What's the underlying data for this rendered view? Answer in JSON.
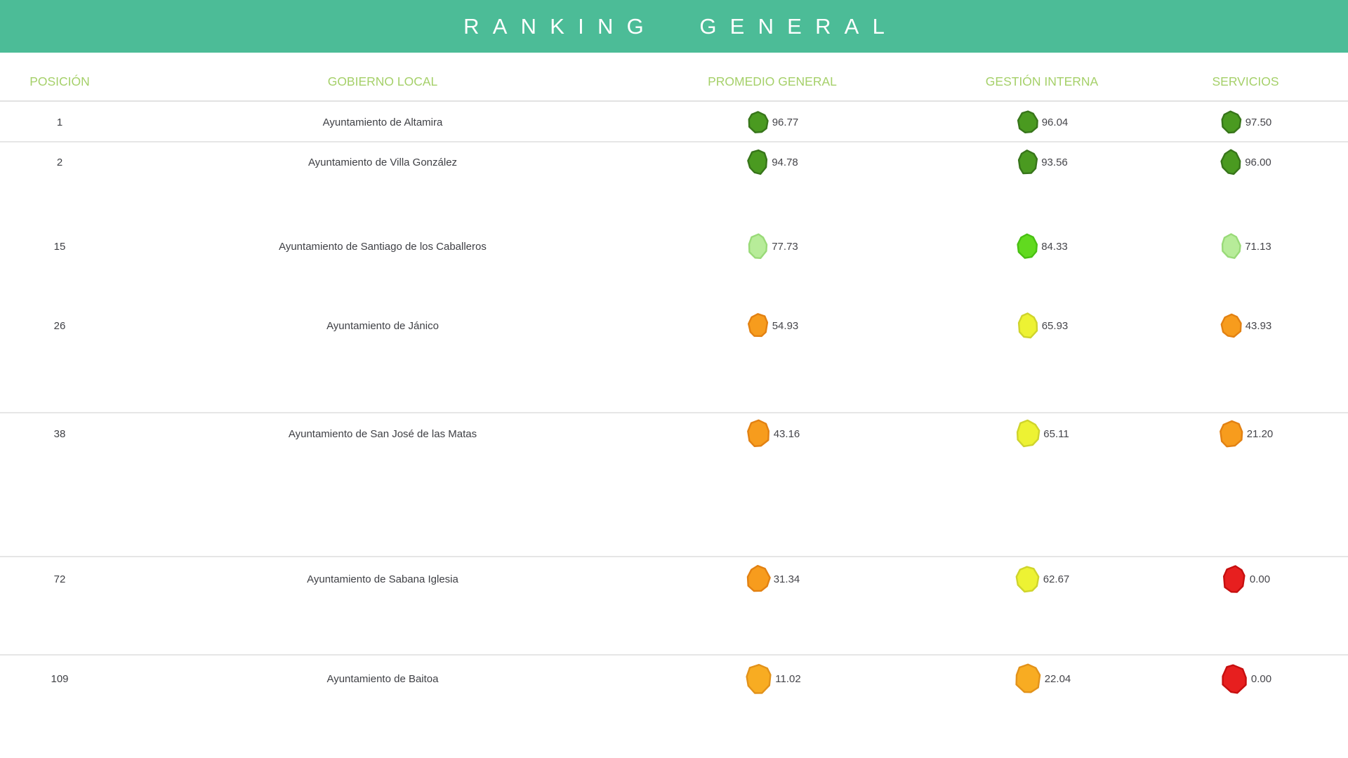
{
  "title": "RANKING GENERAL",
  "columns": [
    {
      "key": "posicion",
      "label": "POSICIÓN"
    },
    {
      "key": "gobierno",
      "label": "GOBIERNO LOCAL"
    },
    {
      "key": "promedio",
      "label": "PROMEDIO GENERAL"
    },
    {
      "key": "gestion",
      "label": "GESTIÓN INTERNA"
    },
    {
      "key": "servicios",
      "label": "SERVICIOS"
    }
  ],
  "colors": {
    "banner_background": "#4cbc97",
    "banner_title_text": "#ffffff",
    "column_header_text": "#a5d069",
    "row_text": "#3f4045",
    "score_text": "#45454a",
    "divider_line": "#e4e4e4"
  },
  "badge_palette": {
    "dark_green": {
      "fill": "#4a9a20",
      "stroke": "#37751a"
    },
    "light_green": {
      "fill": "#b7ec99",
      "stroke": "#99da78"
    },
    "bright_green": {
      "fill": "#61da1f",
      "stroke": "#48c013"
    },
    "yellow": {
      "fill": "#edf233",
      "stroke": "#cfd42c"
    },
    "orange": {
      "fill": "#f79c1d",
      "stroke": "#e28112"
    },
    "amber": {
      "fill": "#f8ac22",
      "stroke": "#e2921a"
    },
    "red": {
      "fill": "#e71f1f",
      "stroke": "#c60f0f"
    }
  },
  "rows": [
    {
      "posicion": "1",
      "gobierno": "Ayuntamiento de Altamira",
      "promedio": {
        "value": "96.77",
        "level": "dark_green"
      },
      "gestion": {
        "value": "96.04",
        "level": "dark_green"
      },
      "servicios": {
        "value": "97.50",
        "level": "dark_green"
      }
    },
    {
      "posicion": "2",
      "gobierno": "Ayuntamiento de Villa González",
      "promedio": {
        "value": "94.78",
        "level": "dark_green"
      },
      "gestion": {
        "value": "93.56",
        "level": "dark_green"
      },
      "servicios": {
        "value": "96.00",
        "level": "dark_green"
      }
    },
    {
      "posicion": "15",
      "gobierno": "Ayuntamiento de Santiago de los Caballeros",
      "promedio": {
        "value": "77.73",
        "level": "light_green"
      },
      "gestion": {
        "value": "84.33",
        "level": "bright_green"
      },
      "servicios": {
        "value": "71.13",
        "level": "light_green"
      }
    },
    {
      "posicion": "26",
      "gobierno": "Ayuntamiento de Jánico",
      "promedio": {
        "value": "54.93",
        "level": "orange"
      },
      "gestion": {
        "value": "65.93",
        "level": "yellow"
      },
      "servicios": {
        "value": "43.93",
        "level": "orange"
      }
    },
    {
      "posicion": "38",
      "gobierno": "Ayuntamiento de San José de las Matas",
      "promedio": {
        "value": "43.16",
        "level": "orange"
      },
      "gestion": {
        "value": "65.11",
        "level": "yellow"
      },
      "servicios": {
        "value": "21.20",
        "level": "orange"
      }
    },
    {
      "posicion": "72",
      "gobierno": "Ayuntamiento de Sabana Iglesia",
      "promedio": {
        "value": "31.34",
        "level": "orange"
      },
      "gestion": {
        "value": "62.67",
        "level": "yellow"
      },
      "servicios": {
        "value": "0.00",
        "level": "red"
      }
    },
    {
      "posicion": "109",
      "gobierno": "Ayuntamiento de Baitoa",
      "promedio": {
        "value": "11.02",
        "level": "amber"
      },
      "gestion": {
        "value": "22.04",
        "level": "amber"
      },
      "servicios": {
        "value": "0.00",
        "level": "red"
      }
    }
  ]
}
